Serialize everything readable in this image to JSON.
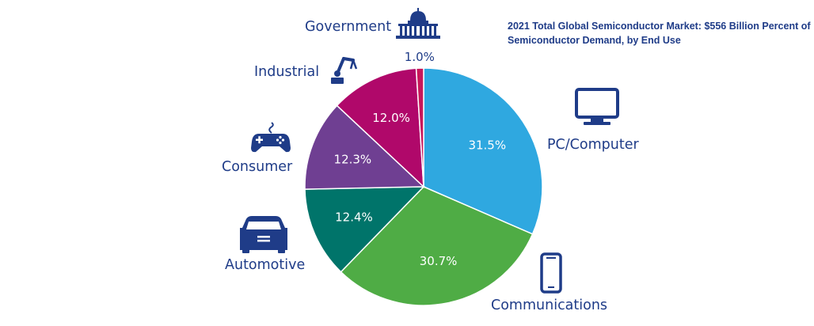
{
  "chart_data": {
    "type": "pie",
    "title": "2021 Total Global Semiconductor Market: $556 Billion Percent of Semiconductor Demand, by End Use",
    "start_angle_deg": 0,
    "direction": "clockwise",
    "slices": [
      {
        "label": "PC/Computer",
        "value": 31.5,
        "value_label": "31.5%",
        "color": "#2fa8e0",
        "icon": "computer-monitor-icon"
      },
      {
        "label": "Communications",
        "value": 30.7,
        "value_label": "30.7%",
        "color": "#4fac45",
        "icon": "smartphone-icon"
      },
      {
        "label": "Automotive",
        "value": 12.4,
        "value_label": "12.4%",
        "color": "#00746a",
        "icon": "car-icon"
      },
      {
        "label": "Consumer",
        "value": 12.3,
        "value_label": "12.3%",
        "color": "#6f3f92",
        "icon": "gamepad-icon"
      },
      {
        "label": "Industrial",
        "value": 12.0,
        "value_label": "12.0%",
        "color": "#b0086a",
        "icon": "robot-arm-icon"
      },
      {
        "label": "Government",
        "value": 1.0,
        "value_label": "1.0%",
        "color": "#c8175a",
        "icon": "capitol-building-icon"
      }
    ],
    "text_color": "#1f3c88"
  }
}
